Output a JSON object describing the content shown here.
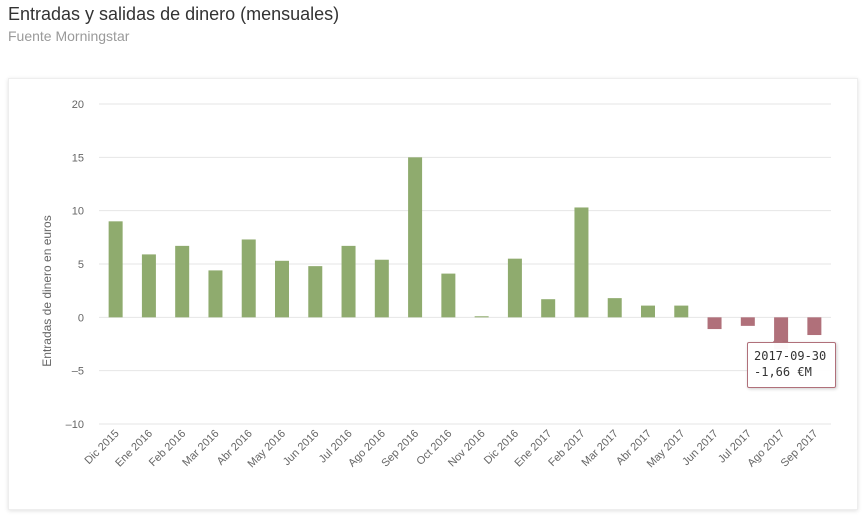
{
  "header": {
    "title": "Entradas y salidas de dinero (mensuales)",
    "subtitle": "Fuente Morningstar"
  },
  "tooltip": {
    "date": "2017-09-30",
    "value": "-1,66 €M"
  },
  "colors": {
    "positive": "#8fab6e",
    "negative": "#b0707a",
    "grid": "#e6e6e6",
    "axis_text": "#666666"
  },
  "chart_data": {
    "type": "bar",
    "title": "Entradas y salidas de dinero (mensuales)",
    "subtitle": "Fuente Morningstar",
    "xlabel": "",
    "ylabel": "Entradas de dinero en euros",
    "ylim": [
      -10,
      20
    ],
    "yticks": [
      20,
      15,
      10,
      5,
      0,
      -5,
      -10
    ],
    "grid": true,
    "legend": "none",
    "categories": [
      "Dic 2015",
      "Ene 2016",
      "Feb 2016",
      "Mar 2016",
      "Abr 2016",
      "May 2016",
      "Jun 2016",
      "Jul 2016",
      "Ago 2016",
      "Sep 2016",
      "Oct 2016",
      "Nov 2016",
      "Dic 2016",
      "Ene 2017",
      "Feb 2017",
      "Mar 2017",
      "Abr 2017",
      "May 2017",
      "Jun 2017",
      "Jul 2017",
      "Ago 2017",
      "Sep 2017"
    ],
    "values": [
      9.0,
      5.9,
      6.7,
      4.4,
      7.3,
      5.3,
      4.8,
      6.7,
      5.4,
      15.0,
      4.1,
      0.1,
      5.5,
      1.7,
      10.3,
      1.8,
      1.1,
      1.1,
      -1.1,
      -0.8,
      -3.0,
      -1.66
    ]
  }
}
